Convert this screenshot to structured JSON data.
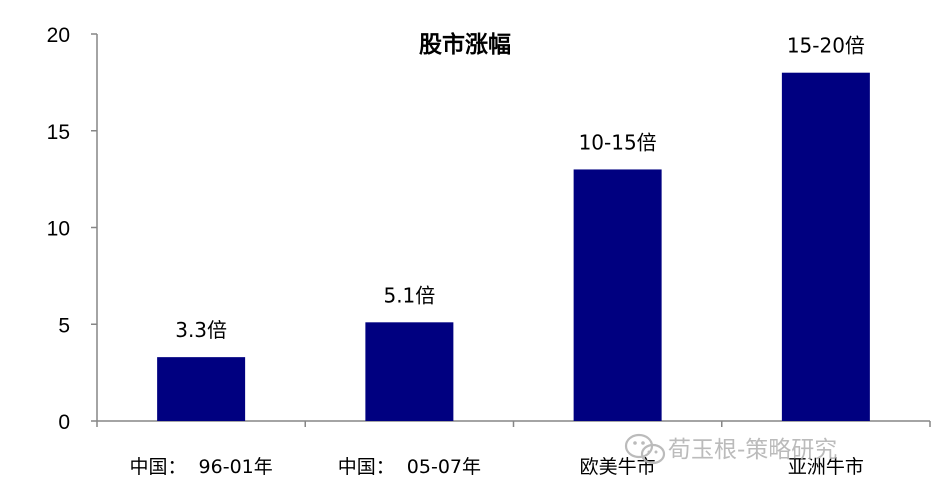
{
  "chart_data": {
    "type": "bar",
    "title": "股市涨幅",
    "categories": [
      "中国：  96-01年",
      "中国：  05-07年",
      "欧美牛市",
      "亚洲牛市"
    ],
    "values": [
      3.3,
      5.1,
      13,
      18
    ],
    "data_labels": [
      "3.3倍",
      "5.1倍",
      "10-15倍",
      "15-20倍"
    ],
    "ylim": [
      0,
      20
    ],
    "yticks": [
      0,
      5,
      10,
      15,
      20
    ],
    "grid": false,
    "bar_color": "#000080"
  },
  "watermark": {
    "text": "荀玉根-策略研究",
    "icon": "wechat-icon"
  }
}
